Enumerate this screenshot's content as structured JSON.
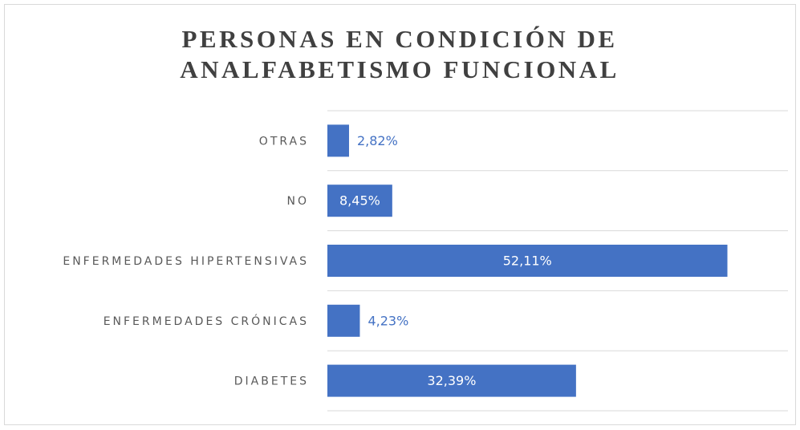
{
  "chart_data": {
    "type": "hbar",
    "title": "PERSONAS EN CONDICIÓN DE ANALFABETISMO FUNCIONAL",
    "categories": [
      "OTRAS",
      "NO",
      "ENFERMEDADES HIPERTENSIVAS",
      "ENFERMEDADES CRÓNICAS",
      "DIABETES"
    ],
    "values": [
      2.82,
      8.45,
      52.11,
      4.23,
      32.39
    ],
    "value_labels": [
      "2,82%",
      "8,45%",
      "52,11%",
      "4,23%",
      "32,39%"
    ],
    "color": "#4472c4",
    "xlim": [
      0,
      60
    ],
    "grid": true
  }
}
